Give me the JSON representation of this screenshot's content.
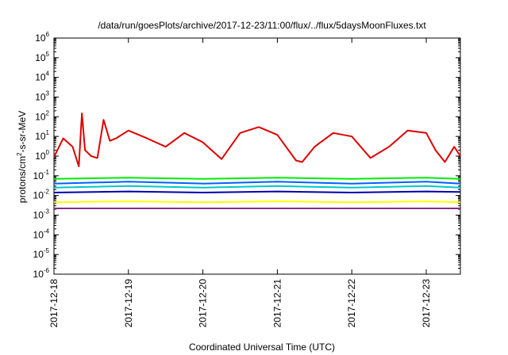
{
  "chart_data": {
    "type": "line",
    "title": "/data/run/goesPlots/archive/2017-12-23/11:00/flux/../flux/5daysMoonFluxes.txt",
    "xlabel": "Coordinated Universal Time (UTC)",
    "ylabel": {
      "base": "protons/cm",
      "sup": "2",
      "rest": "-s-sr-MeV"
    },
    "y_scale": "log",
    "ylim": [
      1e-06,
      1000000.0
    ],
    "y_ticks": [
      {
        "v": 1e-06,
        "exp": "-6"
      },
      {
        "v": 1e-05,
        "exp": "-5"
      },
      {
        "v": 0.0001,
        "exp": "-4"
      },
      {
        "v": 0.001,
        "exp": "-3"
      },
      {
        "v": 0.01,
        "exp": "-2"
      },
      {
        "v": 0.1,
        "exp": "-1"
      },
      {
        "v": 1,
        "exp": "0"
      },
      {
        "v": 10,
        "exp": "1"
      },
      {
        "v": 100,
        "exp": "2"
      },
      {
        "v": 1000,
        "exp": "3"
      },
      {
        "v": 10000,
        "exp": "4"
      },
      {
        "v": 100000,
        "exp": "5"
      },
      {
        "v": 1000000,
        "exp": "6"
      }
    ],
    "x_range": [
      "2017-12-18 00:00",
      "2017-12-23 11:00"
    ],
    "x_ticks": [
      "2017-12-18",
      "2017-12-19",
      "2017-12-20",
      "2017-12-21",
      "2017-12-22",
      "2017-12-23"
    ],
    "grid": false,
    "series": [
      {
        "color": "#e00000",
        "x": [
          "2017-12-18 00:00",
          "2017-12-18 03:00",
          "2017-12-18 06:00",
          "2017-12-18 08:00",
          "2017-12-18 09:00",
          "2017-12-18 10:00",
          "2017-12-18 12:00",
          "2017-12-18 14:00",
          "2017-12-18 16:00",
          "2017-12-18 18:00",
          "2017-12-18 20:00",
          "2017-12-19 00:00",
          "2017-12-19 06:00",
          "2017-12-19 12:00",
          "2017-12-19 18:00",
          "2017-12-20 00:00",
          "2017-12-20 06:00",
          "2017-12-20 12:00",
          "2017-12-20 18:00",
          "2017-12-21 00:00",
          "2017-12-21 06:00",
          "2017-12-21 08:00",
          "2017-12-21 12:00",
          "2017-12-21 18:00",
          "2017-12-22 00:00",
          "2017-12-22 06:00",
          "2017-12-22 12:00",
          "2017-12-22 18:00",
          "2017-12-23 00:00",
          "2017-12-23 03:00",
          "2017-12-23 06:00",
          "2017-12-23 09:00",
          "2017-12-23 11:00"
        ],
        "y": [
          0.9,
          8,
          3,
          0.3,
          150,
          2,
          1,
          0.8,
          70,
          6,
          8,
          20,
          8,
          3,
          15,
          5,
          0.7,
          15,
          30,
          12,
          0.6,
          0.5,
          3,
          15,
          10,
          0.8,
          3,
          20,
          15,
          2,
          0.5,
          3,
          1
        ]
      },
      {
        "color": "#00ee00",
        "x": [
          "2017-12-18 00:00",
          "2017-12-19 00:00",
          "2017-12-20 00:00",
          "2017-12-21 00:00",
          "2017-12-22 00:00",
          "2017-12-23 00:00",
          "2017-12-23 11:00"
        ],
        "y": [
          0.07,
          0.08,
          0.07,
          0.08,
          0.07,
          0.08,
          0.07
        ]
      },
      {
        "color": "#00c8c8",
        "x": [
          "2017-12-18 00:00",
          "2017-12-19 00:00",
          "2017-12-20 00:00",
          "2017-12-21 00:00",
          "2017-12-22 00:00",
          "2017-12-23 00:00",
          "2017-12-23 11:00"
        ],
        "y": [
          0.025,
          0.03,
          0.025,
          0.03,
          0.025,
          0.03,
          0.025
        ]
      },
      {
        "color": "#0060ff",
        "x": [
          "2017-12-18 00:00",
          "2017-12-19 00:00",
          "2017-12-20 00:00",
          "2017-12-21 00:00",
          "2017-12-22 00:00",
          "2017-12-23 00:00",
          "2017-12-23 11:00"
        ],
        "y": [
          0.04,
          0.05,
          0.04,
          0.05,
          0.04,
          0.05,
          0.04
        ]
      },
      {
        "color": "#0000b0",
        "x": [
          "2017-12-18 00:00",
          "2017-12-19 00:00",
          "2017-12-20 00:00",
          "2017-12-21 00:00",
          "2017-12-22 00:00",
          "2017-12-23 00:00",
          "2017-12-23 11:00"
        ],
        "y": [
          0.014,
          0.016,
          0.014,
          0.016,
          0.014,
          0.016,
          0.015
        ]
      },
      {
        "color": "#ffff00",
        "x": [
          "2017-12-18 00:00",
          "2017-12-19 00:00",
          "2017-12-20 00:00",
          "2017-12-21 00:00",
          "2017-12-22 00:00",
          "2017-12-23 00:00",
          "2017-12-23 11:00"
        ],
        "y": [
          0.0045,
          0.005,
          0.0045,
          0.005,
          0.0045,
          0.005,
          0.0045
        ]
      },
      {
        "color": "#803080",
        "x": [
          "2017-12-18 00:00",
          "2017-12-19 00:00",
          "2017-12-20 00:00",
          "2017-12-21 00:00",
          "2017-12-22 00:00",
          "2017-12-23 00:00",
          "2017-12-23 11:00"
        ],
        "y": [
          0.0022,
          0.0022,
          0.0022,
          0.0022,
          0.0022,
          0.0022,
          0.0022
        ]
      }
    ]
  }
}
